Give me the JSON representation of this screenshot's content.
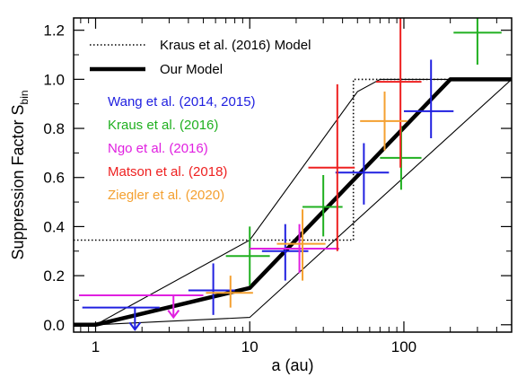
{
  "chart_data": {
    "type": "line",
    "xlabel": "a (au)",
    "ylabel": "Suppression Factor S",
    "ylabel_subscript": "bin",
    "xscale": "log",
    "xlim": [
      0.72,
      500
    ],
    "ylim": [
      -0.03,
      1.25
    ],
    "x_tick_labels": [
      "1",
      "10",
      "100"
    ],
    "y_tick_labels": [
      "0.0",
      "0.2",
      "0.4",
      "0.6",
      "0.8",
      "1.0",
      "1.2"
    ],
    "legend": {
      "placement": "top-left",
      "entries": [
        {
          "label": "Kraus et al. (2016) Model",
          "style": "dotted"
        },
        {
          "label": "Our Model",
          "style": "thick"
        }
      ]
    },
    "series": [
      {
        "name": "Kraus et al. (2016) Model",
        "style": "dotted",
        "color": "#000000",
        "points": [
          [
            0.72,
            0.345
          ],
          [
            47,
            0.345
          ],
          [
            47,
            1.0
          ],
          [
            500,
            1.0
          ]
        ]
      },
      {
        "name": "Our Model",
        "style": "thick",
        "color": "#000000",
        "points": [
          [
            0.72,
            0.0
          ],
          [
            1.0,
            0.0
          ],
          [
            10,
            0.15
          ],
          [
            200,
            1.0
          ],
          [
            500,
            1.0
          ]
        ]
      },
      {
        "name": "",
        "style": "thin",
        "color": "#000000",
        "points": [
          [
            1.0,
            0.0
          ],
          [
            10,
            0.345
          ],
          [
            50,
            0.95
          ],
          [
            70,
            1.0
          ],
          [
            500,
            1.0
          ]
        ]
      },
      {
        "name": "",
        "style": "thin",
        "color": "#000000",
        "points": [
          [
            1.0,
            0.0
          ],
          [
            10,
            0.03
          ],
          [
            500,
            1.0
          ]
        ]
      }
    ],
    "references": [
      {
        "label": "Wang et al. (2014, 2015)",
        "color": "#2020e0",
        "points": [
          {
            "x": 1.8,
            "y": 0.07,
            "xlo": 0.82,
            "xhi": 2.6,
            "ylo": null,
            "yhi": null,
            "upper_limit": true
          },
          {
            "x": 5.8,
            "y": 0.14,
            "xlo": 4.0,
            "xhi": 8.0,
            "ylo": 0.04,
            "yhi": 0.25
          },
          {
            "x": 17.0,
            "y": 0.3,
            "xlo": 12.0,
            "xhi": 24.0,
            "ylo": 0.18,
            "yhi": 0.41
          },
          {
            "x": 55.0,
            "y": 0.62,
            "xlo": 36.0,
            "xhi": 80.0,
            "ylo": 0.49,
            "yhi": 0.74
          },
          {
            "x": 150.0,
            "y": 0.87,
            "xlo": 100.0,
            "xhi": 210.0,
            "ylo": 0.76,
            "yhi": 1.08
          }
        ]
      },
      {
        "label": "Kraus et al. (2016)",
        "color": "#20b020",
        "points": [
          {
            "x": 10.0,
            "y": 0.28,
            "xlo": 7.0,
            "xhi": 13.5,
            "ylo": 0.16,
            "yhi": 0.4
          },
          {
            "x": 30.0,
            "y": 0.48,
            "xlo": 22.0,
            "xhi": 40.0,
            "ylo": 0.36,
            "yhi": 0.61
          },
          {
            "x": 96.0,
            "y": 0.68,
            "xlo": 70.0,
            "xhi": 130.0,
            "ylo": 0.55,
            "yhi": 0.81
          },
          {
            "x": 300.0,
            "y": 1.19,
            "xlo": 210.0,
            "xhi": 430.0,
            "ylo": 1.06,
            "yhi": 1.32
          }
        ]
      },
      {
        "label": "Ngo et al. (2016)",
        "color": "#e020e0",
        "points": [
          {
            "x": 3.2,
            "y": 0.12,
            "xlo": 0.78,
            "xhi": 5.0,
            "ylo": null,
            "yhi": null,
            "upper_limit": true
          },
          {
            "x": 21.0,
            "y": 0.31,
            "xlo": 10.0,
            "xhi": 38.0,
            "ylo": 0.21,
            "yhi": 0.41
          }
        ]
      },
      {
        "label": "Matson et al. (2018)",
        "color": "#ee2020",
        "points": [
          {
            "x": 37.0,
            "y": 0.64,
            "xlo": 24.0,
            "xhi": 48.0,
            "ylo": 0.3,
            "yhi": 0.98
          },
          {
            "x": 95.0,
            "y": 0.99,
            "xlo": 66.0,
            "xhi": 130.0,
            "ylo": 0.64,
            "yhi": 1.33
          }
        ]
      },
      {
        "label": "Ziegler et al. (2020)",
        "color": "#f4a030",
        "points": [
          {
            "x": 7.5,
            "y": 0.13,
            "xlo": 5.2,
            "xhi": 10.5,
            "ylo": 0.07,
            "yhi": 0.2
          },
          {
            "x": 22.0,
            "y": 0.33,
            "xlo": 15.0,
            "xhi": 31.0,
            "ylo": 0.18,
            "yhi": 0.47
          },
          {
            "x": 75.0,
            "y": 0.83,
            "xlo": 52.0,
            "xhi": 105.0,
            "ylo": 0.71,
            "yhi": 0.95
          }
        ]
      }
    ]
  }
}
